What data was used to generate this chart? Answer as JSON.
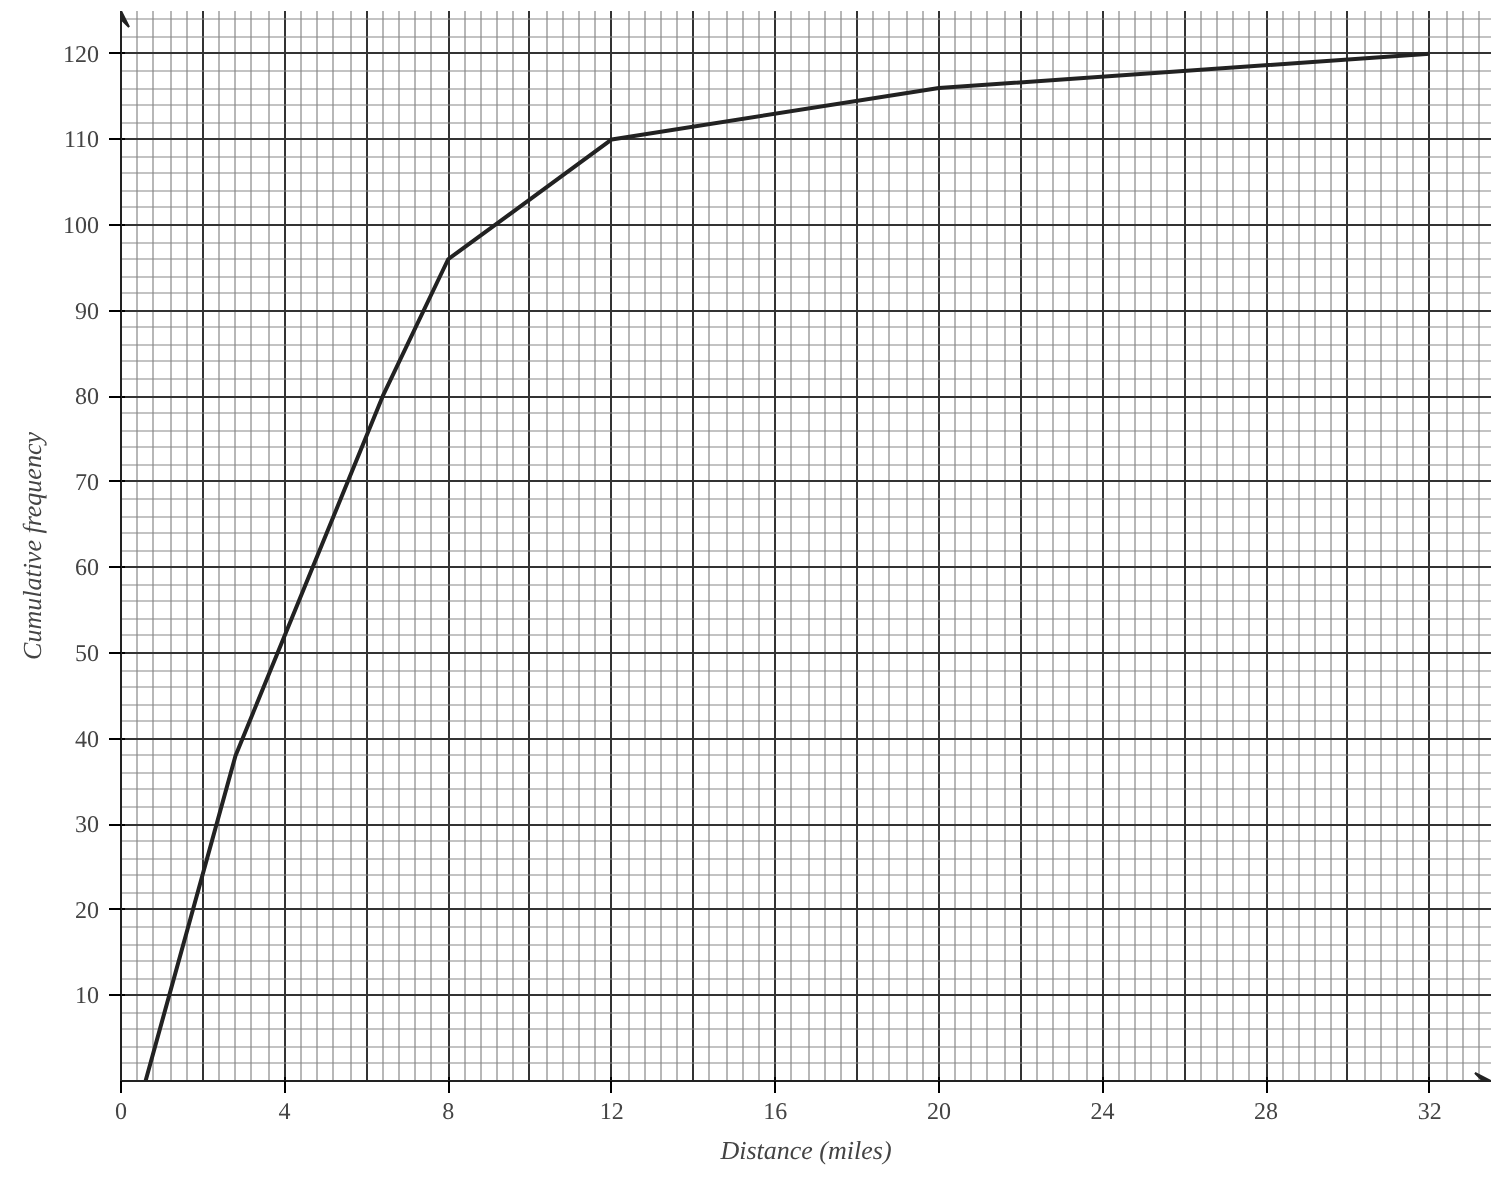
{
  "chart_data": {
    "type": "line",
    "xlabel": "Distance (miles)",
    "ylabel": "Cumulative frequency",
    "x": [
      0.6,
      2.8,
      6.4,
      8,
      12,
      20,
      32
    ],
    "series": [
      {
        "color": "#222222",
        "values": [
          0,
          38,
          80,
          96,
          110,
          116,
          120
        ]
      }
    ],
    "xlim": [
      0,
      33.5
    ],
    "ylim": [
      0,
      125
    ],
    "xticks": [
      0,
      4,
      8,
      12,
      16,
      20,
      24,
      28,
      32
    ],
    "yticks": [
      10,
      20,
      30,
      40,
      50,
      60,
      70,
      80,
      90,
      100,
      110,
      120
    ],
    "grid": true,
    "marker": "none",
    "line_style": "solid"
  }
}
